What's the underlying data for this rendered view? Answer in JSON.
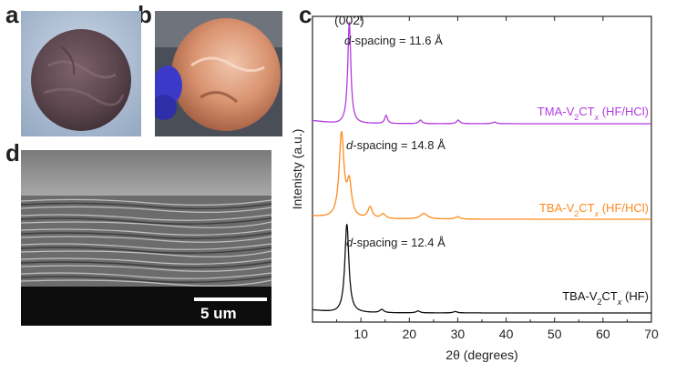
{
  "panels": {
    "a": {
      "label": "a"
    },
    "b": {
      "label": "b"
    },
    "c": {
      "label": "c"
    },
    "d": {
      "label": "d",
      "scale_bar_label": "5 um"
    }
  },
  "colors": {
    "tma": "#b23be0",
    "tba_hfhcl": "#ff8a1c",
    "tba_hf": "#111111",
    "axis": "#222222"
  },
  "chart_data": {
    "type": "line",
    "xlabel": "2θ (degrees)",
    "ylabel": "Intenisty (a.u.)",
    "xlim": [
      0,
      70
    ],
    "x_ticks": [
      10,
      20,
      30,
      40,
      50,
      60,
      70
    ],
    "peak_annotation": "(002)",
    "series": [
      {
        "name": "TMA-V2CTx (HF/HCl)",
        "label_main": "TMA-V",
        "label_sub1": "2",
        "label_mid": "CT",
        "label_sub2": "x",
        "label_tail": " (HF/HCl)",
        "color": "#b23be0",
        "dspacing_prefix": "d",
        "dspacing_text": "-spacing = 11.6 Å",
        "offset": 2.0,
        "peaks": [
          {
            "x": 7.6,
            "h": 1.0,
            "w": 0.38
          },
          {
            "x": 15.2,
            "h": 0.08,
            "w": 0.35
          },
          {
            "x": 22.3,
            "h": 0.035,
            "w": 0.4
          },
          {
            "x": 30.1,
            "h": 0.035,
            "w": 0.4
          },
          {
            "x": 37.6,
            "h": 0.015,
            "w": 0.5
          }
        ]
      },
      {
        "name": "TBA-V2CTx (HF/HCl)",
        "label_main": "TBA-V",
        "label_sub1": "2",
        "label_mid": "CT",
        "label_sub2": "x",
        "label_tail": " (HF/HCl)",
        "color": "#ff8a1c",
        "dspacing_prefix": "d",
        "dspacing_text": "-spacing = 14.8 Å",
        "offset": 1.0,
        "peaks": [
          {
            "x": 6.0,
            "h": 0.9,
            "w": 0.6
          },
          {
            "x": 7.6,
            "h": 0.35,
            "w": 0.55
          },
          {
            "x": 11.9,
            "h": 0.12,
            "w": 0.55
          },
          {
            "x": 14.6,
            "h": 0.05,
            "w": 0.6
          },
          {
            "x": 23.0,
            "h": 0.06,
            "w": 0.9
          },
          {
            "x": 30.0,
            "h": 0.025,
            "w": 0.6
          }
        ]
      },
      {
        "name": "TBA-V2CTx (HF)",
        "label_main": "TBA-V",
        "label_sub1": "2",
        "label_mid": "CT",
        "label_sub2": "x",
        "label_tail": " (HF)",
        "color": "#111111",
        "dspacing_prefix": "d",
        "dspacing_text": "-spacing = 12.4 Å",
        "offset": 0.0,
        "peaks": [
          {
            "x": 7.1,
            "h": 0.95,
            "w": 0.5
          },
          {
            "x": 14.3,
            "h": 0.035,
            "w": 0.5
          },
          {
            "x": 21.8,
            "h": 0.02,
            "w": 0.5
          },
          {
            "x": 29.5,
            "h": 0.015,
            "w": 0.5
          }
        ]
      }
    ]
  }
}
